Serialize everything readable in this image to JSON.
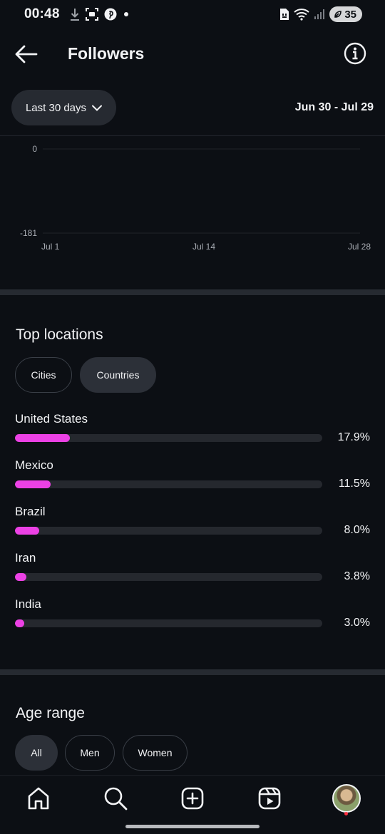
{
  "status_bar": {
    "time": "00:48",
    "battery": "35",
    "icons": [
      "download-icon",
      "screenshot-icon",
      "pinterest-icon",
      "dot-icon",
      "sim-icon",
      "wifi-icon",
      "signal-icon",
      "battery-icon"
    ]
  },
  "header": {
    "title": "Followers",
    "back_icon": "arrow-left-icon",
    "info_icon": "info-icon"
  },
  "filter": {
    "range_label": "Last 30 days",
    "date_range": "Jun 30 - Jul 29"
  },
  "chart_data": {
    "type": "line",
    "y_ticks": [
      "0",
      "-181"
    ],
    "x_ticks": [
      "Jul 1",
      "Jul 14",
      "Jul 28"
    ],
    "ylim": [
      -181,
      0
    ],
    "grid": true
  },
  "top_locations": {
    "title": "Top locations",
    "tabs": [
      {
        "label": "Cities",
        "selected": false
      },
      {
        "label": "Countries",
        "selected": true
      }
    ],
    "items": [
      {
        "name": "United States",
        "percent": "17.9%",
        "value": 17.9
      },
      {
        "name": "Mexico",
        "percent": "11.5%",
        "value": 11.5
      },
      {
        "name": "Brazil",
        "percent": "8.0%",
        "value": 8.0
      },
      {
        "name": "Iran",
        "percent": "3.8%",
        "value": 3.8
      },
      {
        "name": "India",
        "percent": "3.0%",
        "value": 3.0
      }
    ],
    "bar_color": "#ec41e5"
  },
  "age_range": {
    "title": "Age range",
    "tabs": [
      {
        "label": "All",
        "selected": true
      },
      {
        "label": "Men",
        "selected": false
      },
      {
        "label": "Women",
        "selected": false
      }
    ]
  },
  "bottom_nav": {
    "items": [
      "home-icon",
      "search-icon",
      "create-icon",
      "reels-icon",
      "profile-avatar"
    ]
  }
}
